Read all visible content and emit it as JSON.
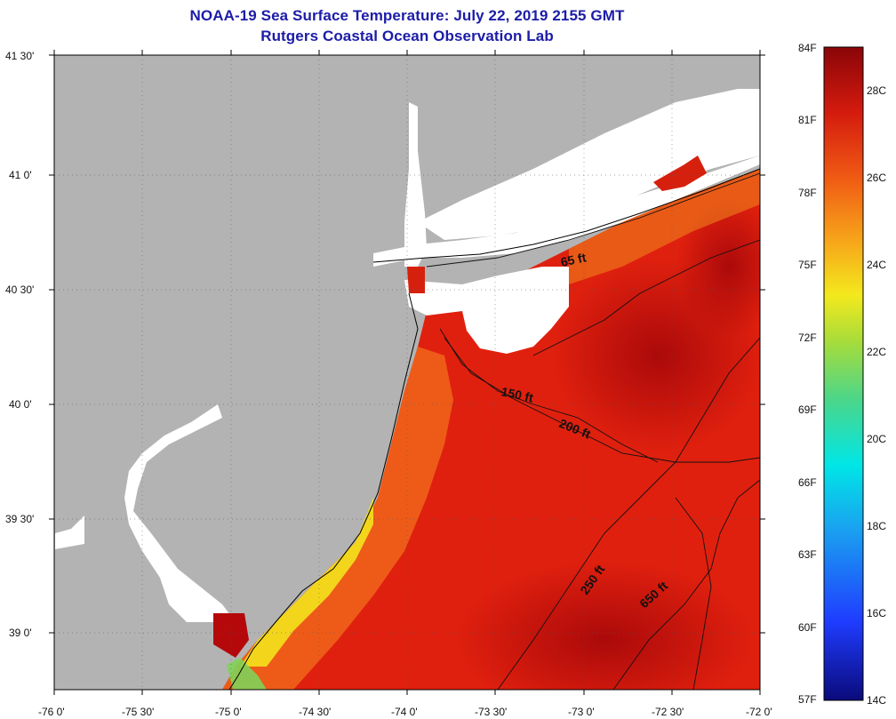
{
  "title_line1": "NOAA-19 Sea Surface Temperature:  July 22, 2019 2155 GMT",
  "title_line2": "Rutgers Coastal Ocean Observation Lab",
  "lat_labels": [
    "41 30'",
    "41 0'",
    "40 30'",
    "40 0'",
    "39 30'",
    "39 0'"
  ],
  "lon_labels": [
    "-76 0'",
    "-75 30'",
    "-75 0'",
    "-74 30'",
    "-74 0'",
    "-73 30'",
    "-73 0'",
    "-72 30'",
    "-72 0'"
  ],
  "depth_contours": [
    "65 ft",
    "150 ft",
    "200 ft",
    "250 ft",
    "650 ft"
  ],
  "colorbar": {
    "fahrenheit": [
      "84F",
      "81F",
      "78F",
      "75F",
      "72F",
      "69F",
      "66F",
      "63F",
      "60F",
      "57F"
    ],
    "celsius": [
      "28C",
      "26C",
      "24C",
      "22C",
      "20C",
      "18C",
      "16C",
      "14C"
    ]
  },
  "colors": {
    "land": "#b3b3b3",
    "cloud": "#ffffff",
    "warm_sea": "#e0200e",
    "hot_sea": "#b4080a",
    "coastal_yellow": "#f3e21d",
    "title": "#1c1ca8"
  }
}
